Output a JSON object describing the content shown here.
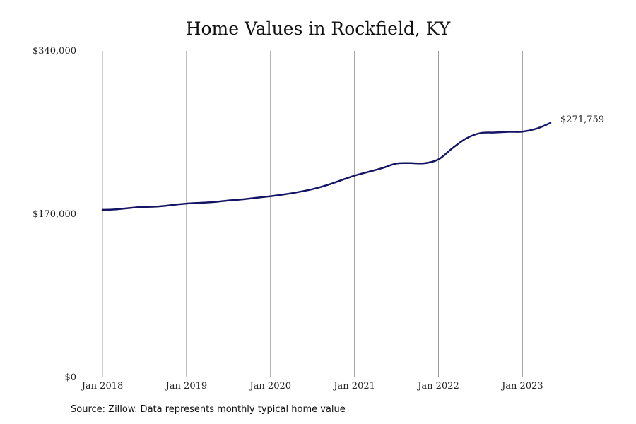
{
  "title": "Home Values in Rockfield, KY",
  "source": "Source: Zillow. Data represents monthly typical home value",
  "chart_data": {
    "type": "line",
    "title": "Home Values in Rockfield, KY",
    "xlabel": "",
    "ylabel": "",
    "ylim": [
      0,
      340000
    ],
    "xlim": [
      "2018-01",
      "2023-05"
    ],
    "y_ticks": [
      {
        "value": 0,
        "label": "$0"
      },
      {
        "value": 170000,
        "label": "$170,000"
      },
      {
        "value": 340000,
        "label": "$340,000"
      }
    ],
    "x_ticks": [
      {
        "value": "2018-01",
        "label": "Jan 2018"
      },
      {
        "value": "2019-01",
        "label": "Jan 2019"
      },
      {
        "value": "2020-01",
        "label": "Jan 2020"
      },
      {
        "value": "2021-01",
        "label": "Jan 2021"
      },
      {
        "value": "2022-01",
        "label": "Jan 2022"
      },
      {
        "value": "2023-01",
        "label": "Jan 2023"
      }
    ],
    "grid": {
      "vertical": true,
      "horizontal": false
    },
    "line_color": "#141464",
    "grid_color": "#9a9a9a",
    "end_label": "$271,759",
    "series": [
      {
        "x": [
          "2018-01",
          "2018-03",
          "2018-05",
          "2018-07",
          "2018-09",
          "2018-11",
          "2019-01",
          "2019-03",
          "2019-05",
          "2019-07",
          "2019-09",
          "2019-11",
          "2020-01",
          "2020-03",
          "2020-05",
          "2020-07",
          "2020-09",
          "2020-11",
          "2021-01",
          "2021-03",
          "2021-05",
          "2021-07",
          "2021-09",
          "2021-11",
          "2022-01",
          "2022-03",
          "2022-05",
          "2022-07",
          "2022-09",
          "2022-11",
          "2023-01",
          "2023-03",
          "2023-05"
        ],
        "y": [
          174500,
          175000,
          176500,
          177500,
          178000,
          179500,
          181000,
          181800,
          182700,
          184200,
          185400,
          187000,
          188600,
          190600,
          193000,
          196000,
          200000,
          205000,
          210000,
          214000,
          218000,
          222700,
          223100,
          223000,
          227000,
          238700,
          249000,
          254400,
          255000,
          255700,
          255900,
          259000,
          265000
        ]
      }
    ]
  }
}
